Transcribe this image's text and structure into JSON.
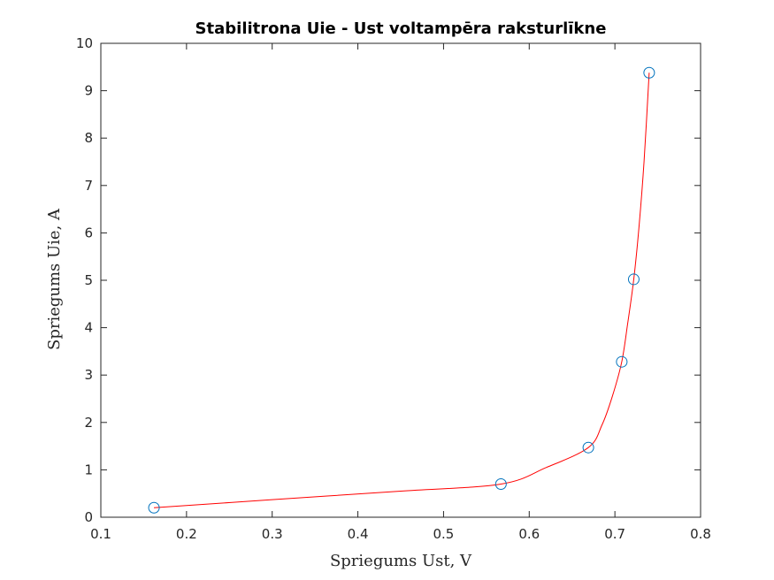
{
  "chart_data": {
    "type": "line",
    "title": "Stabilitrona Uie - Ust voltampēra raksturlīkne",
    "xlabel": "Spriegums Ust, V",
    "ylabel": "Spriegums Uie, A",
    "xlim": [
      0.1,
      0.8
    ],
    "ylim": [
      0,
      10
    ],
    "xticks": [
      0.1,
      0.2,
      0.3,
      0.4,
      0.5,
      0.6,
      0.7,
      0.8
    ],
    "xtick_labels": [
      "0.1",
      "0.2",
      "0.3",
      "0.4",
      "0.5",
      "0.6",
      "0.7",
      "0.8"
    ],
    "yticks": [
      0,
      1,
      2,
      3,
      4,
      5,
      6,
      7,
      8,
      9,
      10
    ],
    "ytick_labels": [
      "0",
      "1",
      "2",
      "3",
      "4",
      "5",
      "6",
      "7",
      "8",
      "9",
      "10"
    ],
    "grid": false,
    "series": [
      {
        "marker": "circle",
        "color": "#0072BD",
        "x": [
          0.162,
          0.567,
          0.669,
          0.708,
          0.722,
          0.74
        ],
        "y": [
          0.2,
          0.7,
          1.47,
          3.28,
          5.02,
          9.38
        ]
      }
    ],
    "fit_curve": {
      "color": "#FF0000",
      "x": [
        0.162,
        0.3,
        0.45,
        0.567,
        0.62,
        0.669,
        0.685,
        0.697,
        0.708,
        0.715,
        0.722,
        0.728,
        0.734,
        0.74
      ],
      "y": [
        0.2,
        0.37,
        0.55,
        0.7,
        1.05,
        1.47,
        1.95,
        2.55,
        3.28,
        4.1,
        5.02,
        6.1,
        7.5,
        9.38
      ]
    }
  }
}
